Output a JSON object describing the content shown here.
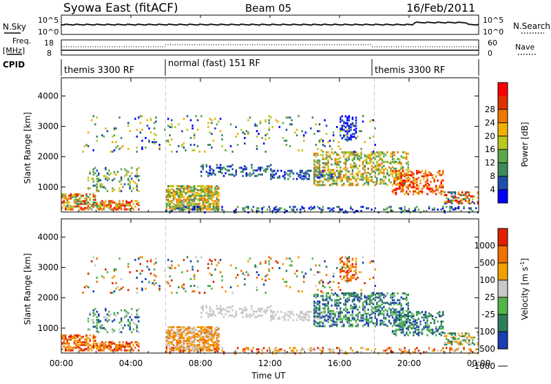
{
  "header": {
    "station": "Syowa East (fitACF)",
    "beam": "Beam 05",
    "date": "16/Feb/2011"
  },
  "noise_panel": {
    "left_label": "N.Sky",
    "right_label": "N.Search",
    "left_ticks": [
      "10^5",
      "10^0"
    ],
    "right_ticks": [
      "10^5",
      "10^0"
    ]
  },
  "freq_panel": {
    "left_label_1": "Freq.",
    "left_label_2": "[MHz]",
    "right_label": "Nave",
    "left_ticks": [
      "18",
      "8"
    ],
    "right_ticks": [
      "60",
      "0"
    ]
  },
  "cpid_panel": {
    "label": "CPID",
    "modes": [
      "themis 3300 RF",
      "normal (fast) 151 RF",
      "themis 3300 RF"
    ]
  },
  "chart_data": [
    {
      "type": "heatmap",
      "parameter": "Power",
      "ylabel": "Slant Range [km]",
      "colorbar_label": "Power [dB]",
      "ylim": [
        180,
        4600
      ],
      "yticks": [
        1000,
        2000,
        3000,
        4000
      ],
      "colorbar_ticks": [
        4,
        8,
        12,
        16,
        20,
        24,
        28
      ],
      "colors": [
        "#0000ff",
        "#1f4ea8",
        "#3d8a5a",
        "#5aa84a",
        "#b8c81e",
        "#f0b000",
        "#f07800",
        "#e03000",
        "#ff0000"
      ]
    },
    {
      "type": "heatmap",
      "parameter": "Velocity",
      "ylabel": "Slant Range [km]",
      "colorbar_label": "Velocity [m s^-1]",
      "ylim": [
        180,
        4600
      ],
      "yticks": [
        1000,
        2000,
        3000,
        4000
      ],
      "colorbar_ticks": [
        1000,
        500,
        100,
        25,
        -25,
        -100,
        -500,
        -1000
      ],
      "colors": [
        "#1a3fb0",
        "#2e7d5a",
        "#52b44a",
        "#c8c8c8",
        "#f0a000",
        "#f07000",
        "#e02000"
      ]
    }
  ],
  "xaxis": {
    "label": "Time UT",
    "ticks": [
      "00:00",
      "04:00",
      "08:00",
      "12:00",
      "16:00",
      "20:00",
      "00:00"
    ]
  }
}
